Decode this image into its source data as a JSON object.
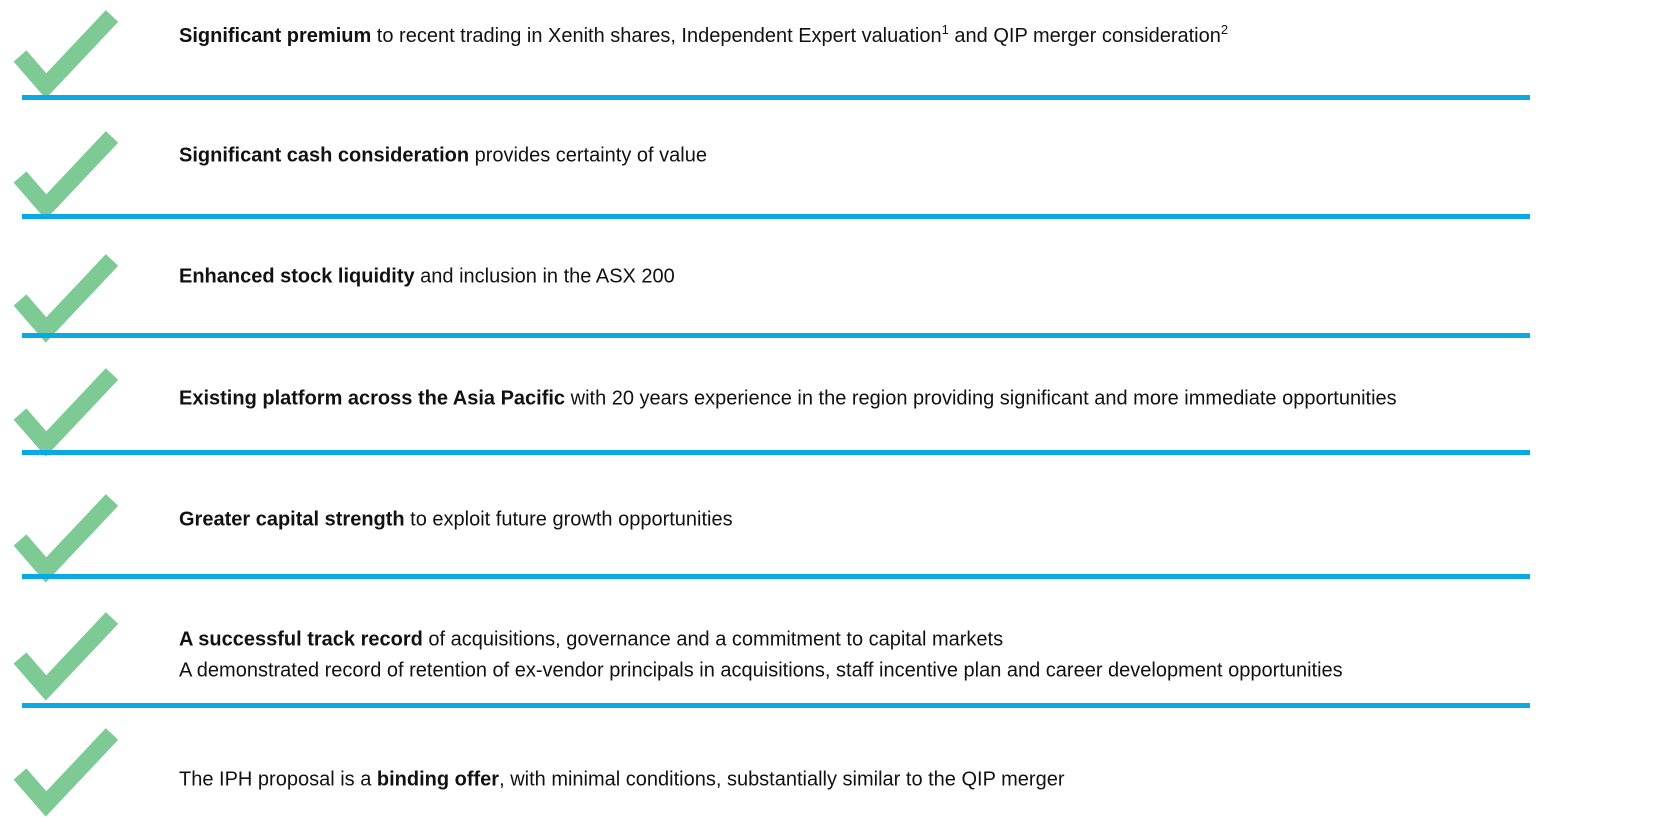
{
  "items": [
    {
      "lines": [
        [
          {
            "text": "Significant premium",
            "style": "bold"
          },
          {
            "text": " to recent trading in Xenith shares, Independent Expert valuation",
            "style": "normal"
          },
          {
            "text": "1",
            "style": "sup"
          },
          {
            "text": " and QIP merger consideration",
            "style": "normal"
          },
          {
            "text": "2",
            "style": "sup"
          }
        ]
      ]
    },
    {
      "lines": [
        [
          {
            "text": "Significant cash consideration",
            "style": "bold"
          },
          {
            "text": " provides certainty of value",
            "style": "normal"
          }
        ]
      ]
    },
    {
      "lines": [
        [
          {
            "text": "Enhanced stock liquidity",
            "style": "bold"
          },
          {
            "text": " and inclusion in the ASX 200",
            "style": "normal"
          }
        ]
      ]
    },
    {
      "lines": [
        [
          {
            "text": "Existing platform across the Asia Pacific",
            "style": "bold"
          },
          {
            "text": " with 20 years experience in the region providing significant and more immediate opportunities",
            "style": "normal"
          }
        ]
      ]
    },
    {
      "lines": [
        [
          {
            "text": "Greater capital strength",
            "style": "bold"
          },
          {
            "text": " to exploit future growth opportunities",
            "style": "normal"
          }
        ]
      ]
    },
    {
      "lines": [
        [
          {
            "text": "A successful track record",
            "style": "bold"
          },
          {
            "text": " of acquisitions, governance and a commitment to capital markets",
            "style": "normal"
          }
        ],
        [
          {
            "text": "A demonstrated record of retention of ex-vendor principals in acquisitions, staff incentive plan and career development opportunities",
            "style": "normal"
          }
        ]
      ]
    },
    {
      "lines": [
        [
          {
            "text": "The IPH proposal is a ",
            "style": "normal"
          },
          {
            "text": "binding offer",
            "style": "bold"
          },
          {
            "text": ", with minimal conditions, substantially similar to the QIP merger",
            "style": "normal"
          }
        ]
      ]
    }
  ]
}
